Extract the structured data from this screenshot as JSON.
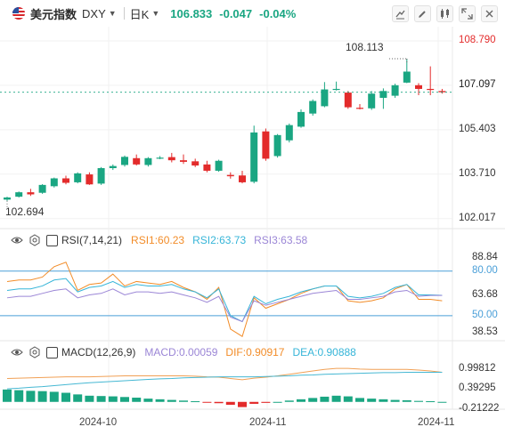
{
  "header": {
    "symbol_name": "美元指数",
    "symbol_code": "DXY",
    "timeframe": "日K",
    "last": "106.833",
    "change": "-0.047",
    "change_pct": "-0.04%",
    "change_color": "#1aa682"
  },
  "header_icons": [
    "crosshair-icon",
    "draw-icon",
    "compare-icon",
    "expand-icon",
    "close-icon"
  ],
  "colors": {
    "up": "#1aa682",
    "down": "#e32b2b",
    "rsi1": "#f28c28",
    "rsi2": "#36b5d8",
    "rsi3": "#9b86d6",
    "macd": "#f1a055",
    "dea": "#46b8d3",
    "level_line": "#4a9fd8"
  },
  "price_axis_labels": [
    "108.790",
    "107.097",
    "105.403",
    "103.710",
    "102.017"
  ],
  "annotations": {
    "high": "108.113",
    "low": "102.694"
  },
  "rsi": {
    "label": "RSI(7,14,21)",
    "v1": "RSI1:60.23",
    "v2": "RSI2:63.73",
    "v3": "RSI3:63.58",
    "axis_labels": [
      "88.84",
      "80.00",
      "63.68",
      "50.00",
      "38.53"
    ]
  },
  "macd": {
    "label": "MACD(12,26,9)",
    "v_macd": "MACD:0.00059",
    "v_dif": "DIF:0.90917",
    "v_dea": "DEA:0.90888",
    "axis_labels": [
      "0.99812",
      "0.39295",
      "-0.21222"
    ]
  },
  "x_labels": [
    "2024-10",
    "2024-11",
    "2024-11"
  ],
  "chart_data": [
    {
      "type": "candlestick",
      "title": "DXY 日K",
      "ylim": [
        101.6,
        109.4
      ],
      "candles": [
        {
          "o": 102.74,
          "h": 102.85,
          "l": 102.694,
          "c": 102.82
        },
        {
          "o": 102.85,
          "h": 103.05,
          "l": 102.82,
          "c": 103.02
        },
        {
          "o": 103.02,
          "h": 103.15,
          "l": 102.88,
          "c": 102.94
        },
        {
          "o": 103.0,
          "h": 103.33,
          "l": 102.96,
          "c": 103.3
        },
        {
          "o": 103.25,
          "h": 103.58,
          "l": 103.2,
          "c": 103.55
        },
        {
          "o": 103.55,
          "h": 103.65,
          "l": 103.32,
          "c": 103.38
        },
        {
          "o": 103.4,
          "h": 103.78,
          "l": 103.36,
          "c": 103.74
        },
        {
          "o": 103.7,
          "h": 103.78,
          "l": 103.3,
          "c": 103.32
        },
        {
          "o": 103.35,
          "h": 103.98,
          "l": 103.3,
          "c": 103.94
        },
        {
          "o": 103.94,
          "h": 104.08,
          "l": 103.87,
          "c": 104.02
        },
        {
          "o": 104.06,
          "h": 104.42,
          "l": 104.0,
          "c": 104.37
        },
        {
          "o": 104.32,
          "h": 104.46,
          "l": 104.04,
          "c": 104.08
        },
        {
          "o": 104.06,
          "h": 104.36,
          "l": 104.0,
          "c": 104.32
        },
        {
          "o": 104.32,
          "h": 104.4,
          "l": 104.28,
          "c": 104.34
        },
        {
          "o": 104.36,
          "h": 104.52,
          "l": 104.16,
          "c": 104.24
        },
        {
          "o": 104.24,
          "h": 104.46,
          "l": 104.1,
          "c": 104.18
        },
        {
          "o": 104.2,
          "h": 104.3,
          "l": 103.98,
          "c": 104.04
        },
        {
          "o": 104.08,
          "h": 104.22,
          "l": 103.78,
          "c": 103.84
        },
        {
          "o": 103.84,
          "h": 104.26,
          "l": 103.8,
          "c": 104.22
        },
        {
          "o": 103.68,
          "h": 103.78,
          "l": 103.54,
          "c": 103.63
        },
        {
          "o": 103.66,
          "h": 103.84,
          "l": 103.36,
          "c": 103.4
        },
        {
          "o": 103.42,
          "h": 105.56,
          "l": 103.36,
          "c": 105.3
        },
        {
          "o": 105.34,
          "h": 105.45,
          "l": 104.22,
          "c": 104.3
        },
        {
          "o": 104.4,
          "h": 105.24,
          "l": 104.34,
          "c": 105.2
        },
        {
          "o": 105.0,
          "h": 105.64,
          "l": 104.92,
          "c": 105.58
        },
        {
          "o": 105.52,
          "h": 106.18,
          "l": 105.48,
          "c": 106.08
        },
        {
          "o": 106.02,
          "h": 106.56,
          "l": 105.94,
          "c": 106.5
        },
        {
          "o": 106.3,
          "h": 107.22,
          "l": 106.26,
          "c": 106.94
        },
        {
          "o": 106.94,
          "h": 107.24,
          "l": 106.9,
          "c": 106.96
        },
        {
          "o": 106.82,
          "h": 106.88,
          "l": 106.2,
          "c": 106.26
        },
        {
          "o": 106.24,
          "h": 106.38,
          "l": 106.18,
          "c": 106.22
        },
        {
          "o": 106.22,
          "h": 106.88,
          "l": 106.16,
          "c": 106.78
        },
        {
          "o": 106.62,
          "h": 106.98,
          "l": 106.2,
          "c": 106.88
        },
        {
          "o": 106.7,
          "h": 107.16,
          "l": 106.62,
          "c": 107.1
        },
        {
          "o": 107.2,
          "h": 108.113,
          "l": 107.18,
          "c": 107.62
        },
        {
          "o": 107.1,
          "h": 107.18,
          "l": 106.72,
          "c": 106.96
        },
        {
          "o": 106.96,
          "h": 107.82,
          "l": 106.72,
          "c": 106.95
        },
        {
          "o": 106.88,
          "h": 106.96,
          "l": 106.78,
          "c": 106.833
        }
      ]
    },
    {
      "type": "line",
      "title": "RSI(7,14,21)",
      "ylim": [
        38.53,
        88.84
      ],
      "reference_lines": [
        80,
        50
      ],
      "series": [
        {
          "name": "RSI1",
          "values": [
            73,
            74,
            74,
            76,
            83,
            86,
            67,
            71,
            72,
            78,
            70,
            73,
            72,
            71,
            73,
            69,
            66,
            61,
            69,
            41,
            36,
            62,
            55,
            58,
            61,
            65,
            68,
            70,
            70,
            60,
            59,
            60,
            62,
            68,
            71,
            61,
            61,
            60
          ]
        },
        {
          "name": "RSI2",
          "values": [
            67,
            68,
            68,
            70,
            74,
            75,
            66,
            69,
            70,
            73,
            69,
            71,
            70,
            70,
            71,
            68,
            66,
            62,
            68,
            50,
            46,
            63,
            58,
            61,
            63,
            66,
            68,
            70,
            70,
            63,
            62,
            63,
            65,
            69,
            71,
            64,
            64,
            63.7
          ]
        },
        {
          "name": "RSI3",
          "values": [
            62,
            63,
            63,
            65,
            67,
            68,
            62,
            64,
            65,
            68,
            64,
            66,
            66,
            65,
            66,
            64,
            62,
            59,
            63,
            49,
            46,
            60,
            57,
            59,
            61,
            63,
            65,
            66,
            67,
            61,
            61,
            62,
            63,
            66,
            67,
            63,
            63.6,
            63.6
          ]
        }
      ]
    },
    {
      "type": "bar+line",
      "title": "MACD(12,26,9)",
      "ylim": [
        -0.28,
        1.28
      ],
      "series": [
        {
          "name": "MACD",
          "values": [
            0.38,
            0.36,
            0.34,
            0.33,
            0.31,
            0.28,
            0.23,
            0.19,
            0.18,
            0.17,
            0.15,
            0.13,
            0.1,
            0.08,
            0.06,
            0.04,
            0.02,
            -0.02,
            -0.04,
            -0.09,
            -0.16,
            -0.06,
            -0.03,
            0.0,
            0.04,
            0.08,
            0.12,
            0.16,
            0.19,
            0.17,
            0.12,
            0.1,
            0.08,
            0.06,
            0.05,
            0.03,
            0.02,
            0.0006
          ]
        },
        {
          "name": "DIF",
          "values": [
            0.72,
            0.73,
            0.74,
            0.75,
            0.76,
            0.77,
            0.77,
            0.77,
            0.78,
            0.79,
            0.8,
            0.8,
            0.8,
            0.8,
            0.8,
            0.8,
            0.79,
            0.77,
            0.76,
            0.72,
            0.68,
            0.73,
            0.76,
            0.8,
            0.85,
            0.9,
            0.95,
            1.0,
            1.03,
            1.03,
            1.01,
            1.0,
            1.0,
            1.0,
            1.0,
            0.98,
            0.95,
            0.909
          ]
        },
        {
          "name": "DEA",
          "values": [
            0.4,
            0.42,
            0.45,
            0.47,
            0.5,
            0.53,
            0.56,
            0.59,
            0.61,
            0.63,
            0.65,
            0.67,
            0.69,
            0.71,
            0.72,
            0.74,
            0.75,
            0.76,
            0.77,
            0.77,
            0.77,
            0.77,
            0.78,
            0.79,
            0.8,
            0.82,
            0.83,
            0.85,
            0.86,
            0.87,
            0.88,
            0.89,
            0.9,
            0.9,
            0.91,
            0.91,
            0.91,
            0.909
          ]
        }
      ]
    }
  ]
}
